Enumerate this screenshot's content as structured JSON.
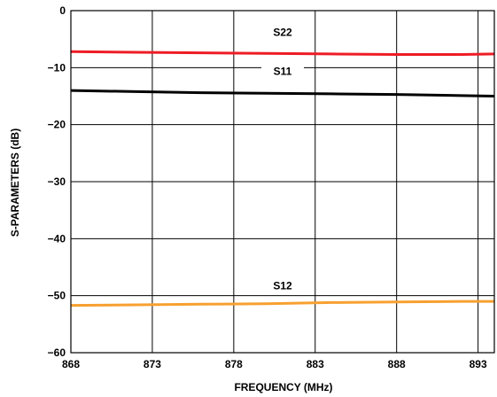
{
  "chart_data": {
    "type": "line",
    "xlabel": "FREQUENCY (MHz)",
    "ylabel": "S-PARAMETERS (dB)",
    "xlim": [
      868,
      894
    ],
    "ylim": [
      -60,
      0
    ],
    "x_ticks": [
      868,
      873,
      878,
      883,
      888,
      893
    ],
    "x_tick_labels": [
      "868",
      "873",
      "878",
      "883",
      "888",
      "893"
    ],
    "y_ticks": [
      0,
      -10,
      -20,
      -30,
      -40,
      -50,
      -60
    ],
    "y_tick_labels": [
      "0",
      "−10",
      "−20",
      "−30",
      "−40",
      "−50",
      "−60"
    ],
    "grid": true,
    "legend": "inline labels",
    "series": [
      {
        "name": "S22",
        "color": "#ee1c25",
        "label_at": [
          881,
          -4.4
        ],
        "x": [
          868,
          872,
          876,
          880,
          884,
          888,
          892,
          894
        ],
        "y": [
          -7.2,
          -7.3,
          -7.4,
          -7.5,
          -7.6,
          -7.7,
          -7.7,
          -7.6
        ]
      },
      {
        "name": "S11",
        "color": "#000000",
        "label_at": [
          881,
          -11.3
        ],
        "x": [
          868,
          872,
          876,
          880,
          884,
          888,
          892,
          894
        ],
        "y": [
          -14.0,
          -14.2,
          -14.4,
          -14.5,
          -14.6,
          -14.7,
          -14.9,
          -15.0
        ]
      },
      {
        "name": "S12",
        "color": "#f7a030",
        "label_at": [
          881,
          -48.9
        ],
        "x": [
          868,
          872,
          876,
          880,
          884,
          888,
          892,
          894
        ],
        "y": [
          -51.7,
          -51.6,
          -51.5,
          -51.4,
          -51.2,
          -51.1,
          -51.0,
          -51.0
        ]
      }
    ]
  }
}
